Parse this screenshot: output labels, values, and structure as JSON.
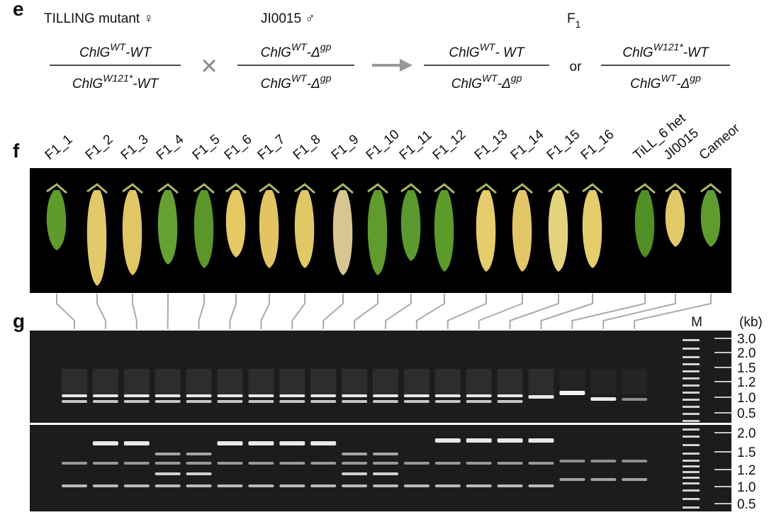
{
  "panel_e": {
    "label": "e",
    "parents": [
      "TILLING mutant ♀",
      "JI0015 ♂"
    ],
    "offspring": {
      "text": "F",
      "sub": "1"
    },
    "cross": "×",
    "or": "or",
    "fractions": [
      {
        "top": [
          "ChlG",
          "WT",
          "-WT"
        ],
        "bottom": [
          "ChlG",
          "W121*",
          "-WT"
        ]
      },
      {
        "top": [
          "ChlG",
          "WT",
          "-Δ",
          "gp"
        ],
        "bottom": [
          "ChlG",
          "WT",
          "-Δ",
          "gp"
        ]
      },
      {
        "top": [
          "ChlG",
          "WT",
          "- WT"
        ],
        "bottom": [
          "ChlG",
          "WT",
          "-Δ",
          "gp"
        ]
      },
      {
        "top": [
          "ChlG",
          "W121*",
          "-WT"
        ],
        "bottom": [
          "ChlG",
          "WT",
          "-Δ",
          "gp"
        ]
      }
    ]
  },
  "panel_f": {
    "label": "f",
    "lanes": [
      "F1_1",
      "F1_2",
      "F1_3",
      "F1_4",
      "F1_5",
      "F1_6",
      "F1_7",
      "F1_8",
      "F1_9",
      "F1_10",
      "F1_11",
      "F1_12",
      "F1_13",
      "F1_14",
      "F1_15",
      "F1_16",
      "TiLL_6 het",
      "JI0015",
      "Cameor"
    ]
  },
  "panel_g": {
    "label": "g",
    "marker": "M",
    "unit": "(kb)",
    "top_sizes": [
      "3.0",
      "2.0",
      "1.5",
      "1.2",
      "1.0",
      "0.5"
    ],
    "bottom_sizes": [
      "2.0",
      "1.5",
      "1.2",
      "1.0",
      "0.5"
    ]
  }
}
